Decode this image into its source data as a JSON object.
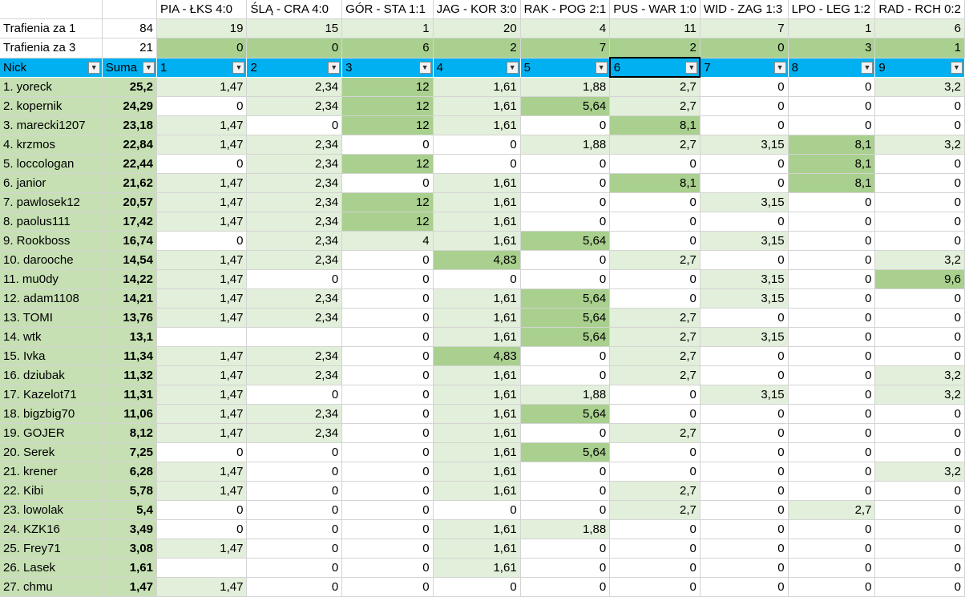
{
  "matches": [
    "PIA - ŁKS 4:0",
    "ŚLĄ - CRA 4:0",
    "GÓR - STA 1:1",
    "JAG - KOR 3:0",
    "RAK - POG 2:1",
    "PUS - WAR 1:0",
    "WID - ZAG 1:3",
    "LPO - LEG 1:2",
    "RAD - RCH 0:2"
  ],
  "trafienia1": {
    "label": "Trafienia za 1",
    "total": "84",
    "values": [
      "19",
      "15",
      "1",
      "20",
      "4",
      "11",
      "7",
      "1",
      "6"
    ]
  },
  "trafienia3": {
    "label": "Trafienia za 3",
    "total": "21",
    "values": [
      "0",
      "0",
      "6",
      "2",
      "7",
      "2",
      "0",
      "3",
      "1"
    ]
  },
  "header": {
    "nick": "Nick",
    "suma": "Suma",
    "cols": [
      "1",
      "2",
      "3",
      "4",
      "5",
      "6",
      "7",
      "8",
      "9"
    ]
  },
  "rows": [
    {
      "nick": "1.  yoreck",
      "suma": "25,2",
      "v": [
        "1,47",
        "2,34",
        "12",
        "1,61",
        "1,88",
        "2,7",
        "0",
        "0",
        "3,2"
      ]
    },
    {
      "nick": "2.  kopernik",
      "suma": "24,29",
      "v": [
        "0",
        "2,34",
        "12",
        "1,61",
        "5,64",
        "2,7",
        "0",
        "0",
        "0"
      ]
    },
    {
      "nick": "3.  marecki1207",
      "suma": "23,18",
      "v": [
        "1,47",
        "0",
        "12",
        "1,61",
        "0",
        "8,1",
        "0",
        "0",
        "0"
      ]
    },
    {
      "nick": "4.  krzmos",
      "suma": "22,84",
      "v": [
        "1,47",
        "2,34",
        "0",
        "0",
        "1,88",
        "2,7",
        "3,15",
        "8,1",
        "3,2"
      ]
    },
    {
      "nick": "5.  loccologan",
      "suma": "22,44",
      "v": [
        "0",
        "2,34",
        "12",
        "0",
        "0",
        "0",
        "0",
        "8,1",
        "0"
      ]
    },
    {
      "nick": "6.  janior",
      "suma": "21,62",
      "v": [
        "1,47",
        "2,34",
        "0",
        "1,61",
        "0",
        "8,1",
        "0",
        "8,1",
        "0"
      ]
    },
    {
      "nick": "7.  pawlosek12",
      "suma": "20,57",
      "v": [
        "1,47",
        "2,34",
        "12",
        "1,61",
        "0",
        "0",
        "3,15",
        "0",
        "0"
      ]
    },
    {
      "nick": "8.  paolus111",
      "suma": "17,42",
      "v": [
        "1,47",
        "2,34",
        "12",
        "1,61",
        "0",
        "0",
        "0",
        "0",
        "0"
      ]
    },
    {
      "nick": "9.  Rookboss",
      "suma": "16,74",
      "v": [
        "0",
        "2,34",
        "4",
        "1,61",
        "5,64",
        "0",
        "3,15",
        "0",
        "0"
      ]
    },
    {
      "nick": "10.  darooche",
      "suma": "14,54",
      "v": [
        "1,47",
        "2,34",
        "0",
        "4,83",
        "0",
        "2,7",
        "0",
        "0",
        "3,2"
      ]
    },
    {
      "nick": "11.  mu0dy",
      "suma": "14,22",
      "v": [
        "1,47",
        "0",
        "0",
        "0",
        "0",
        "0",
        "3,15",
        "0",
        "9,6"
      ]
    },
    {
      "nick": "12.  adam1108",
      "suma": "14,21",
      "v": [
        "1,47",
        "2,34",
        "0",
        "1,61",
        "5,64",
        "0",
        "3,15",
        "0",
        "0"
      ]
    },
    {
      "nick": "13.  TOMI",
      "suma": "13,76",
      "v": [
        "1,47",
        "2,34",
        "0",
        "1,61",
        "5,64",
        "2,7",
        "0",
        "0",
        "0"
      ]
    },
    {
      "nick": "14.  wtk",
      "suma": "13,1",
      "v": [
        "",
        "",
        "0",
        "1,61",
        "5,64",
        "2,7",
        "3,15",
        "0",
        "0"
      ]
    },
    {
      "nick": "15.  Ivka",
      "suma": "11,34",
      "v": [
        "1,47",
        "2,34",
        "0",
        "4,83",
        "0",
        "2,7",
        "0",
        "0",
        "0"
      ]
    },
    {
      "nick": "16.  dziubak",
      "suma": "11,32",
      "v": [
        "1,47",
        "2,34",
        "0",
        "1,61",
        "0",
        "2,7",
        "0",
        "0",
        "3,2"
      ]
    },
    {
      "nick": "17.  Kazelot71",
      "suma": "11,31",
      "v": [
        "1,47",
        "0",
        "0",
        "1,61",
        "1,88",
        "0",
        "3,15",
        "0",
        "3,2"
      ]
    },
    {
      "nick": "18.  bigzbig70",
      "suma": "11,06",
      "v": [
        "1,47",
        "2,34",
        "0",
        "1,61",
        "5,64",
        "0",
        "0",
        "0",
        "0"
      ]
    },
    {
      "nick": "19.  GOJER",
      "suma": "8,12",
      "v": [
        "1,47",
        "2,34",
        "0",
        "1,61",
        "0",
        "2,7",
        "0",
        "0",
        "0"
      ]
    },
    {
      "nick": "20.  Serek",
      "suma": "7,25",
      "v": [
        "0",
        "0",
        "0",
        "1,61",
        "5,64",
        "0",
        "0",
        "0",
        "0"
      ]
    },
    {
      "nick": "21.  krener",
      "suma": "6,28",
      "v": [
        "1,47",
        "0",
        "0",
        "1,61",
        "0",
        "0",
        "0",
        "0",
        "3,2"
      ]
    },
    {
      "nick": "22.  Kibi",
      "suma": "5,78",
      "v": [
        "1,47",
        "0",
        "0",
        "1,61",
        "0",
        "2,7",
        "0",
        "0",
        "0"
      ]
    },
    {
      "nick": "23.  lowolak",
      "suma": "5,4",
      "v": [
        "0",
        "0",
        "0",
        "0",
        "0",
        "2,7",
        "0",
        "2,7",
        "0"
      ]
    },
    {
      "nick": "24.  KZK16",
      "suma": "3,49",
      "v": [
        "0",
        "0",
        "0",
        "1,61",
        "1,88",
        "0",
        "0",
        "0",
        "0"
      ]
    },
    {
      "nick": "25.  Frey71",
      "suma": "3,08",
      "v": [
        "1,47",
        "0",
        "0",
        "1,61",
        "0",
        "0",
        "0",
        "0",
        "0"
      ]
    },
    {
      "nick": "26.  Lasek",
      "suma": "1,61",
      "v": [
        "",
        "0",
        "0",
        "1,61",
        "0",
        "0",
        "0",
        "0",
        "0"
      ]
    },
    {
      "nick": "27.  chmu",
      "suma": "1,47",
      "v": [
        "1,47",
        "0",
        "0",
        "0",
        "0",
        "0",
        "0",
        "0",
        "0"
      ]
    }
  ],
  "colors": {
    "header": "#00b0f0",
    "light_green": "#e2efda",
    "mid_green": "#a9d08e",
    "soft_green": "#c6e0b4"
  },
  "icons": {
    "filter": "dropdown-arrow-icon"
  }
}
